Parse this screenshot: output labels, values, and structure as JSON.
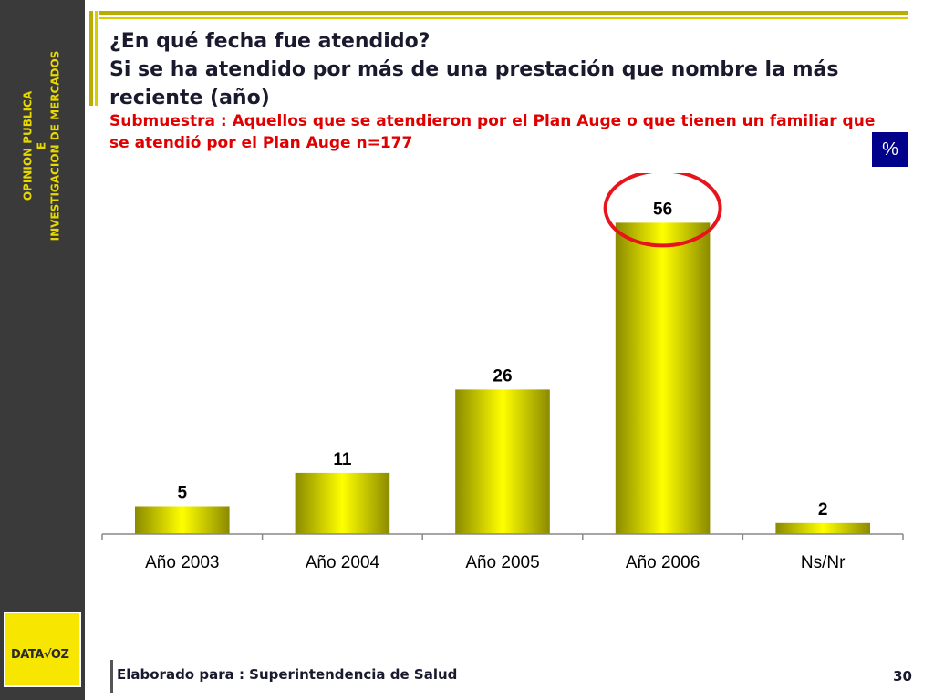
{
  "sidebar": {
    "line1": "OPINION PUBLICA",
    "line2": "E",
    "line3": "INVESTIGACION DE MERCADOS"
  },
  "logo": {
    "text": "DATA√OZ"
  },
  "title": {
    "line1": "¿En qué fecha fue atendido?",
    "line2": "Si se ha atendido por más de una prestación que nombre la más reciente (año)"
  },
  "subtitle": "Submuestra : Aquellos que se atendieron por el Plan Auge o que tienen un familiar que se atendió por el Plan Auge n=177",
  "percent_badge": "%",
  "footer": {
    "text": "Elaborado para : Superintendencia de Salud",
    "page": "30"
  },
  "chart_data": {
    "type": "bar",
    "categories": [
      "Año 2003",
      "Año 2004",
      "Año 2005",
      "Año 2006",
      "Ns/Nr"
    ],
    "values": [
      5,
      11,
      26,
      56,
      2
    ],
    "highlighted": "Año 2006",
    "ylim": [
      0,
      60
    ],
    "grid": false,
    "colors": {
      "bar_light": "#ffff00",
      "bar_dark": "#8a8a00",
      "highlight": "#e8141c"
    }
  }
}
